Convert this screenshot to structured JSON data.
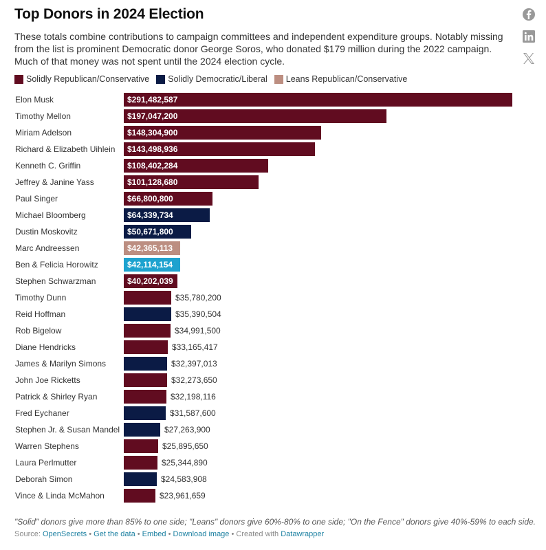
{
  "header": {
    "title": "Top Donors in 2024 Election",
    "description": "These totals combine contributions to campaign committees and independent expenditure groups. Notably missing from the list is prominent Democratic donor George Soros, who donated $179 million during the 2022 campaign. Much of that money was not spent until the 2024 election cycle."
  },
  "social": [
    {
      "name": "facebook-icon",
      "color": "#999999"
    },
    {
      "name": "linkedin-icon",
      "color": "#999999"
    },
    {
      "name": "x-icon",
      "color": "#999999"
    }
  ],
  "legend": [
    {
      "label": "Solidly Republican/Conservative",
      "color": "#610c20"
    },
    {
      "label": "Solidly Democratic/Liberal",
      "color": "#0b1b45"
    },
    {
      "label": "Leans Republican/Conservative",
      "color": "#bc8e81"
    }
  ],
  "chart_data": {
    "type": "bar",
    "orientation": "horizontal",
    "title": "Top Donors in 2024 Election",
    "xlabel": "",
    "ylabel": "",
    "xlim": [
      0,
      291482587
    ],
    "grid": false,
    "legend_position": "top-left",
    "categories": [
      "Elon Musk",
      "Timothy Mellon",
      "Miriam Adelson",
      "Richard & Elizabeth Uihlein",
      "Kenneth C. Griffin",
      "Jeffrey & Janine Yass",
      "Paul Singer",
      "Michael Bloomberg",
      "Dustin Moskovitz",
      "Marc Andreessen",
      "Ben & Felicia Horowitz",
      "Stephen Schwarzman",
      "Timothy Dunn",
      "Reid Hoffman",
      "Rob Bigelow",
      "Diane Hendricks",
      "James & Marilyn Simons",
      "John Joe Ricketts",
      "Patrick & Shirley Ryan",
      "Fred Eychaner",
      "Stephen Jr. & Susan Mandel",
      "Warren Stephens",
      "Laura Perlmutter",
      "Deborah Simon",
      "Vince & Linda McMahon"
    ],
    "values": [
      291482587,
      197047200,
      148304900,
      143498936,
      108402284,
      101128680,
      66800800,
      64339734,
      50671800,
      42365113,
      42114154,
      40202039,
      35780200,
      35390504,
      34991500,
      33165417,
      32397013,
      32273650,
      32198116,
      31587600,
      27263900,
      25895650,
      25344890,
      24583908,
      23961659
    ],
    "value_labels": [
      "$291,482,587",
      "$197,047,200",
      "$148,304,900",
      "$143,498,936",
      "$108,402,284",
      "$101,128,680",
      "$66,800,800",
      "$64,339,734",
      "$50,671,800",
      "$42,365,113",
      "$42,114,154",
      "$40,202,039",
      "$35,780,200",
      "$35,390,504",
      "$34,991,500",
      "$33,165,417",
      "$32,397,013",
      "$32,273,650",
      "$32,198,116",
      "$31,587,600",
      "$27,263,900",
      "$25,895,650",
      "$25,344,890",
      "$24,583,908",
      "$23,961,659"
    ],
    "groups": [
      "R",
      "R",
      "R",
      "R",
      "R",
      "R",
      "R",
      "D",
      "D",
      "LR",
      "OTHER",
      "R",
      "R",
      "D",
      "R",
      "R",
      "D",
      "R",
      "R",
      "D",
      "D",
      "R",
      "R",
      "D",
      "R"
    ],
    "group_colors": {
      "R": "#610c20",
      "D": "#0b1b45",
      "LR": "#bc8e81",
      "OTHER": "#1da2cf"
    }
  },
  "footer": {
    "notes": "\"Solid\" donors give more than 85% to one side; \"Leans\" donors give 60%-80% to one side; \"On the Fence\" donors give 40%-59% to each side.",
    "source_prefix": "Source: ",
    "source_link": "OpenSecrets",
    "get_data": "Get the data",
    "embed": "Embed",
    "download": "Download image",
    "created_prefix": "Created with ",
    "created_link": "Datawrapper",
    "sep": " • "
  }
}
